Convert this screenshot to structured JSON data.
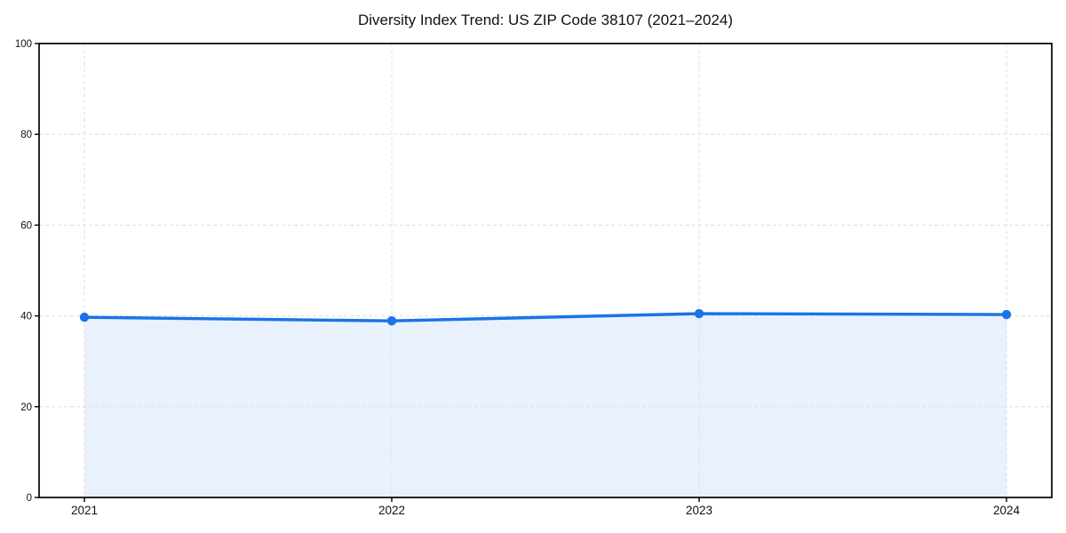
{
  "page": {
    "background_color": "#ffffff"
  },
  "chart_data": {
    "type": "area",
    "title": "Diversity Index Trend: US ZIP Code 38107 (2021–2024)",
    "categories": [
      "2021",
      "2022",
      "2023",
      "2024"
    ],
    "series": [
      {
        "name": "Diversity Index",
        "values": [
          39.7,
          38.9,
          40.5,
          40.3
        ]
      }
    ],
    "xlabel": "",
    "ylabel": "",
    "ylim": [
      0,
      100
    ],
    "yticks": [
      0,
      20,
      40,
      60,
      80,
      100
    ],
    "grid": "on",
    "grid_style": "dashed",
    "legend_position": "none",
    "colors": {
      "line": "#1a73e8",
      "marker": "#1a73e8",
      "area_fill": "#e9f1fd",
      "grid": "#e2e2e2",
      "axis": "#000000",
      "title_text": "#111111",
      "tick_text": "#111111",
      "plot_background": "#ffffff"
    }
  }
}
